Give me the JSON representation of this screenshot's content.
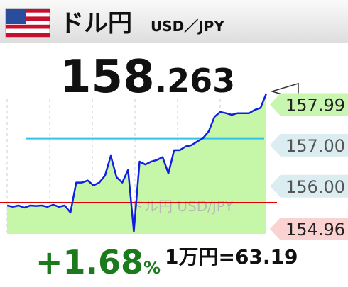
{
  "header": {
    "title": "ドル円",
    "pair": "USD／JPY"
  },
  "price": {
    "integer": "158",
    "decimal": ".263"
  },
  "change": {
    "value": "+1.68",
    "unit": "%"
  },
  "conversion": "1万円=63.19",
  "chart_data": {
    "type": "line",
    "watermark": "ドル円 USD/JPY",
    "series": [
      {
        "color": "#1020e0",
        "fill": "#c6f7a8",
        "values": [
          155.53,
          155.5,
          155.53,
          155.48,
          155.53,
          155.52,
          155.53,
          155.5,
          155.55,
          155.5,
          155.53,
          155.36,
          156.09,
          156.09,
          156.14,
          156.02,
          156.09,
          156.26,
          156.74,
          156.22,
          156.09,
          156.4,
          154.9,
          156.6,
          156.53,
          156.6,
          156.64,
          156.71,
          156.31,
          156.88,
          156.88,
          156.97,
          157.0,
          157.09,
          157.17,
          157.34,
          157.69,
          157.81,
          157.78,
          157.74,
          157.78,
          157.78,
          157.78,
          157.86,
          157.91,
          158.26
        ]
      }
    ],
    "ylim": [
      154.84,
      158.12
    ],
    "yticks": [
      157.99,
      {
        "value": 157,
        "label": "157.00"
      },
      {
        "value": 156,
        "label": "156.00"
      },
      154.96
    ],
    "ytick_colors": [
      "#c8f5b0",
      "#dcedf1",
      "#dcedf1",
      "#fbd2d2"
    ],
    "ytick_text_colors": [
      "#222222",
      "#555555",
      "#555555",
      "#222222"
    ],
    "hlines": [
      {
        "value": 155.6,
        "color": "#e00000"
      },
      {
        "value": 157.16,
        "color": "#33c3e8"
      }
    ]
  }
}
